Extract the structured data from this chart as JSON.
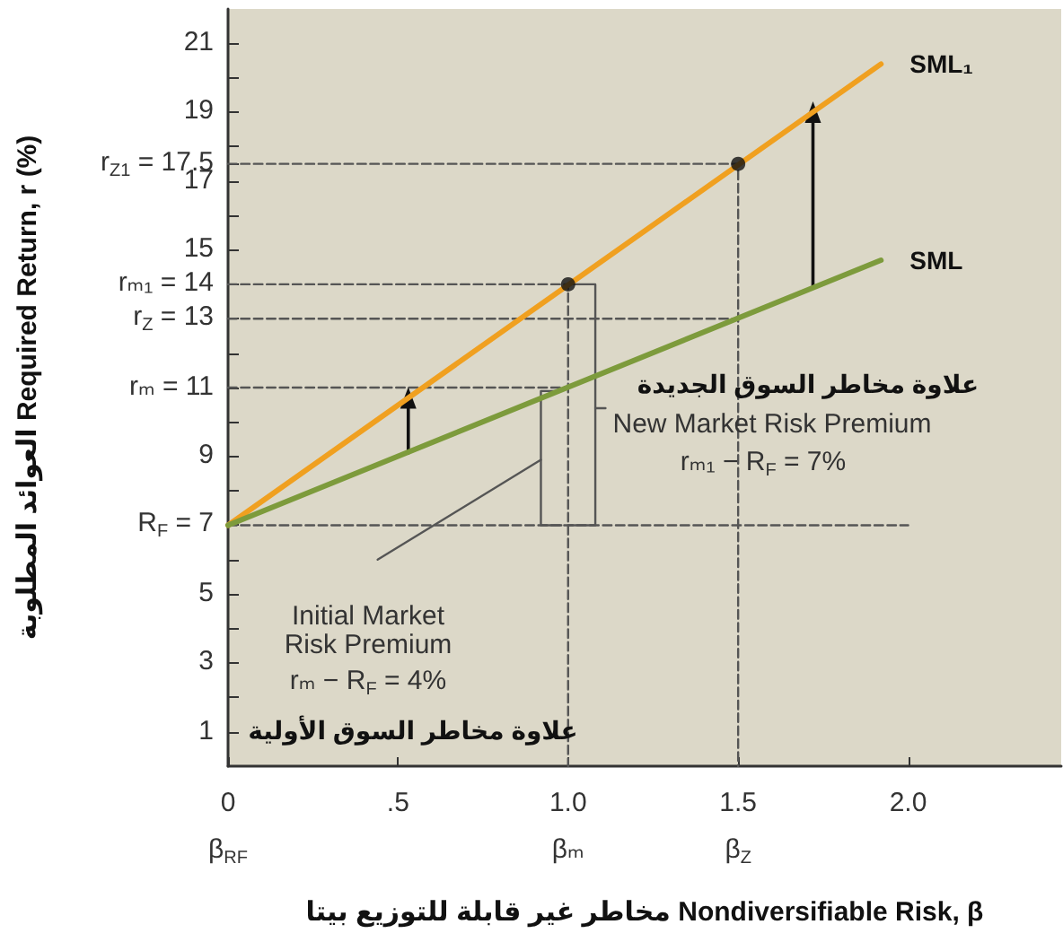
{
  "chart_data": {
    "type": "line",
    "xlabel": "مخاطر غير قابلة للتوزيع بيتا Nondiversifiable Risk, β",
    "ylabel": "العوائد المطلوبة Required Return, r (%)",
    "xlim": [
      0,
      2.45
    ],
    "ylim": [
      0,
      22
    ],
    "xticks": [
      {
        "value": 0,
        "label": "0\nβ$_{RF}$"
      },
      {
        "value": 0.5,
        "label": ".5"
      },
      {
        "value": 1,
        "label": "1.0\nβₘ"
      },
      {
        "value": 1.5,
        "label": "1.5\nβ$_{Z}$"
      },
      {
        "value": 2,
        "label": "2.0"
      }
    ],
    "yticks": [
      1,
      {
        "value": 2,
        "label": null
      },
      3,
      {
        "value": 4,
        "label": null
      },
      5,
      {
        "value": 6,
        "label": null
      },
      {
        "value": 7,
        "label": "R$_{F}$ = 7"
      },
      {
        "value": 8,
        "label": null
      },
      9,
      {
        "value": 10,
        "label": null
      },
      {
        "value": 11,
        "label": "rₘ = 11"
      },
      {
        "value": 12,
        "label": null
      },
      {
        "value": 13,
        "label": "r$_{Z}$ = 13"
      },
      {
        "value": 14,
        "label": "rₘ₁ = 14"
      },
      15,
      {
        "value": 16,
        "label": null
      },
      17,
      {
        "value": 17.5,
        "label": "r$_{Z1}$ = 17.5"
      },
      {
        "value": 18,
        "label": null
      },
      19,
      {
        "value": 20,
        "label": null
      },
      21
    ],
    "series": [
      {
        "name": "SML₁",
        "color": "#f0a020",
        "x": [
          0,
          1.92
        ],
        "values": [
          7,
          20.4
        ],
        "marker": "none"
      },
      {
        "name": "SML",
        "color": "#7d9b3c",
        "x": [
          0,
          1.92
        ],
        "values": [
          7,
          14.7
        ],
        "marker": "none"
      },
      {
        "type": "line",
        "color": "#555555",
        "x": [
          0,
          2.0
        ],
        "values": [
          7,
          7
        ],
        "line_style": "dashed",
        "marker": "none"
      },
      {
        "type": "line",
        "color": "#555555",
        "x": [
          0,
          1.0
        ],
        "values": [
          11,
          11
        ],
        "line_style": "dashed",
        "marker": "none"
      },
      {
        "type": "line",
        "color": "#555555",
        "x": [
          0,
          1.5
        ],
        "values": [
          13,
          13
        ],
        "line_style": "dashed",
        "marker": "none"
      },
      {
        "type": "line",
        "color": "#555555",
        "x": [
          0,
          1.0,
          1.0
        ],
        "values": [
          14,
          14,
          0
        ],
        "line_style": "dashed",
        "marker": "none"
      },
      {
        "type": "line",
        "color": "#555555",
        "x": [
          0,
          1.5,
          1.5
        ],
        "values": [
          17.5,
          17.5,
          0
        ],
        "line_style": "dashed",
        "marker": "none"
      },
      {
        "type": "line",
        "color": "#555555",
        "x": [
          0.98,
          0.92,
          0.92,
          0.98
        ],
        "values": [
          10.9,
          10.9,
          7,
          7
        ],
        "marker": "none"
      },
      {
        "type": "line",
        "color": "#555555",
        "x": [
          1.0,
          1.08,
          1.08,
          1.0
        ],
        "values": [
          14,
          14,
          7,
          7
        ],
        "marker": "none"
      },
      {
        "type": "line",
        "color": "#555555",
        "x": [
          0.44,
          0.92
        ],
        "values": [
          6.0,
          8.9
        ],
        "marker": "none"
      },
      {
        "type": "line",
        "color": "#555555",
        "x": [
          1.08,
          1.11
        ],
        "values": [
          10.4,
          10.4
        ],
        "marker": "none"
      },
      {
        "type": "line",
        "color": "#111111",
        "x": [
          0.53,
          0.53
        ],
        "values": [
          9.1,
          10.7
        ],
        "marker": "triangle"
      },
      {
        "type": "line",
        "color": "#111111",
        "x": [
          1.72,
          1.72
        ],
        "values": [
          13.9,
          19.0
        ],
        "marker": "triangle"
      },
      {
        "type": "scatter",
        "color": "#111111",
        "x": [
          1.0,
          1.5
        ],
        "values": [
          14,
          17.5
        ],
        "marker": "circle"
      }
    ],
    "annotations": [
      "علاوة مخاطر السوق الجديدة",
      "New Market Risk Premium",
      "rₘ₁ − R$_{F}$ = 7%",
      "Initial Market Risk Premium",
      "rₘ − R$_{F}$ = 4%",
      "علاوة مخاطر السوق الأولية"
    ]
  }
}
